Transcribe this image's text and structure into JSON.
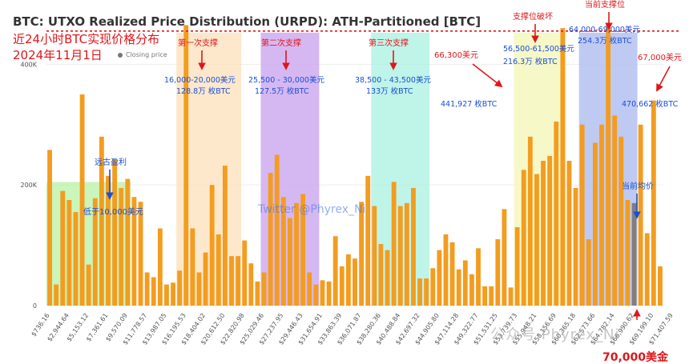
{
  "title": "BTC: UTXO Realized Price Distribution (URPD): ATH-Partitioned [BTC]",
  "subtitle_line1": "近24小时BTC实现价格分布",
  "subtitle_line2": "2024年11月1日",
  "legend": {
    "label": "Closing price"
  },
  "watermark_center": "Twitter @Phyrex_Ni",
  "watermark_bottom": "公众号·Phyrex_Ni",
  "colors": {
    "bar": "#f39c1f",
    "bar_current": "#7f7f7f",
    "ath_line": "#e0161b",
    "annotation_red": "#e0161b",
    "annotation_blue": "#1a4fd6",
    "band_green": "#b8f2a4",
    "band_orange": "#fde0b9",
    "band_purple": "#c7a0ee",
    "band_cyan": "#aaf0e2",
    "band_yellow": "#f3f6b5",
    "band_blue": "#aab8ee"
  },
  "chart_data": {
    "type": "bar",
    "ylim": [
      0,
      480000
    ],
    "yticks": [
      {
        "value": 0,
        "label": "0"
      },
      {
        "value": 200000,
        "label": "200K"
      },
      {
        "value": 400000,
        "label": "400K"
      }
    ],
    "xtick_labels": [
      "$736.16",
      "$2,944.64",
      "$5,153.12",
      "$7,361.61",
      "$9,570.09",
      "$11,778.57",
      "$13,987.05",
      "$16,195.53",
      "$18,404.02",
      "$20,612.50",
      "$22,820.98",
      "$25,029.46",
      "$27,237.95",
      "$29,446.43",
      "$31,654.91",
      "$33,863.39",
      "$36,071.87",
      "$38,280.36",
      "$40,488.84",
      "$42,697.32",
      "$44,905.80",
      "$47,114.28",
      "$49,322.77",
      "$51,531.25",
      "$53,739.73",
      "$55,948.21",
      "$58,156.69",
      "$60,365.18",
      "$62,573.66",
      "$64,782.14",
      "$66,990.62",
      "$69,199.10",
      "$71,407.59"
    ],
    "values": [
      258000,
      35000,
      190000,
      175000,
      155000,
      350000,
      68000,
      178000,
      280000,
      215000,
      242000,
      195000,
      210000,
      180000,
      172000,
      55000,
      47000,
      128000,
      35000,
      38000,
      58000,
      465000,
      128000,
      55000,
      88000,
      200000,
      118000,
      232000,
      82000,
      82000,
      108000,
      70000,
      40000,
      55000,
      220000,
      250000,
      180000,
      145000,
      170000,
      185000,
      55000,
      35000,
      42000,
      40000,
      115000,
      65000,
      85000,
      78000,
      172000,
      215000,
      165000,
      102000,
      92000,
      205000,
      165000,
      170000,
      195000,
      45000,
      45000,
      62000,
      92000,
      118000,
      105000,
      60000,
      75000,
      52000,
      95000,
      32000,
      32000,
      110000,
      160000,
      30000,
      130000,
      225000,
      280000,
      218000,
      240000,
      248000,
      305000,
      460000,
      240000,
      195000,
      300000,
      110000,
      270000,
      300000,
      465000,
      315000,
      280000,
      175000,
      170000,
      300000,
      120000,
      340000,
      65000
    ],
    "highlight_index": 90,
    "ath_line_value": 455000,
    "bands": [
      {
        "from": 0,
        "to": 12,
        "color": "band_green"
      },
      {
        "from": 20,
        "to": 29,
        "color": "band_orange"
      },
      {
        "from": 33,
        "to": 41,
        "color": "band_purple"
      },
      {
        "from": 50,
        "to": 58,
        "color": "band_cyan"
      },
      {
        "from": 72,
        "to": 79,
        "color": "band_yellow"
      },
      {
        "from": 82,
        "to": 90,
        "color": "band_blue"
      }
    ],
    "annotations": [
      {
        "text": "第一次支撑",
        "color": "annotation_red",
        "anchor": "above",
        "bar": 24
      },
      {
        "text": "第二次支撑",
        "color": "annotation_red",
        "anchor": "above",
        "bar": 37
      },
      {
        "text": "第三次支撑",
        "color": "annotation_red",
        "anchor": "above",
        "bar": 54
      },
      {
        "text": "支撑位破坏",
        "color": "annotation_red",
        "anchor": "above",
        "bar": 75
      },
      {
        "text": "当前支撑位",
        "color": "annotation_red",
        "anchor": "above",
        "bar": 86
      },
      {
        "text": "16,000-20,000美元",
        "color": "annotation_blue"
      },
      {
        "text": "128.8万 枚BTC",
        "color": "annotation_blue"
      },
      {
        "text": "25,500 - 30,000美元",
        "color": "annotation_blue"
      },
      {
        "text": "127.5万 枚BTC",
        "color": "annotation_blue"
      },
      {
        "text": "38,500 - 43,500美元",
        "color": "annotation_blue"
      },
      {
        "text": "133万 枚BTC",
        "color": "annotation_blue"
      },
      {
        "text": "56,500-61,500美元",
        "color": "annotation_blue"
      },
      {
        "text": "216.3万 枚BTC",
        "color": "annotation_blue"
      },
      {
        "text": "64,000-69,000美元",
        "color": "annotation_blue"
      },
      {
        "text": "254.3万 枚BTC",
        "color": "annotation_blue"
      },
      {
        "text": "66,300美元",
        "color": "annotation_red"
      },
      {
        "text": "441,927 枚BTC",
        "color": "annotation_blue"
      },
      {
        "text": "67,000美元",
        "color": "annotation_red"
      },
      {
        "text": "470,662 枚BTC",
        "color": "annotation_blue"
      },
      {
        "text": "远古盈利",
        "color": "annotation_blue"
      },
      {
        "text": "低于10,000美元",
        "color": "annotation_blue"
      },
      {
        "text": "当前均价",
        "color": "annotation_blue"
      },
      {
        "text": "70,000美金",
        "color": "annotation_red"
      }
    ]
  }
}
